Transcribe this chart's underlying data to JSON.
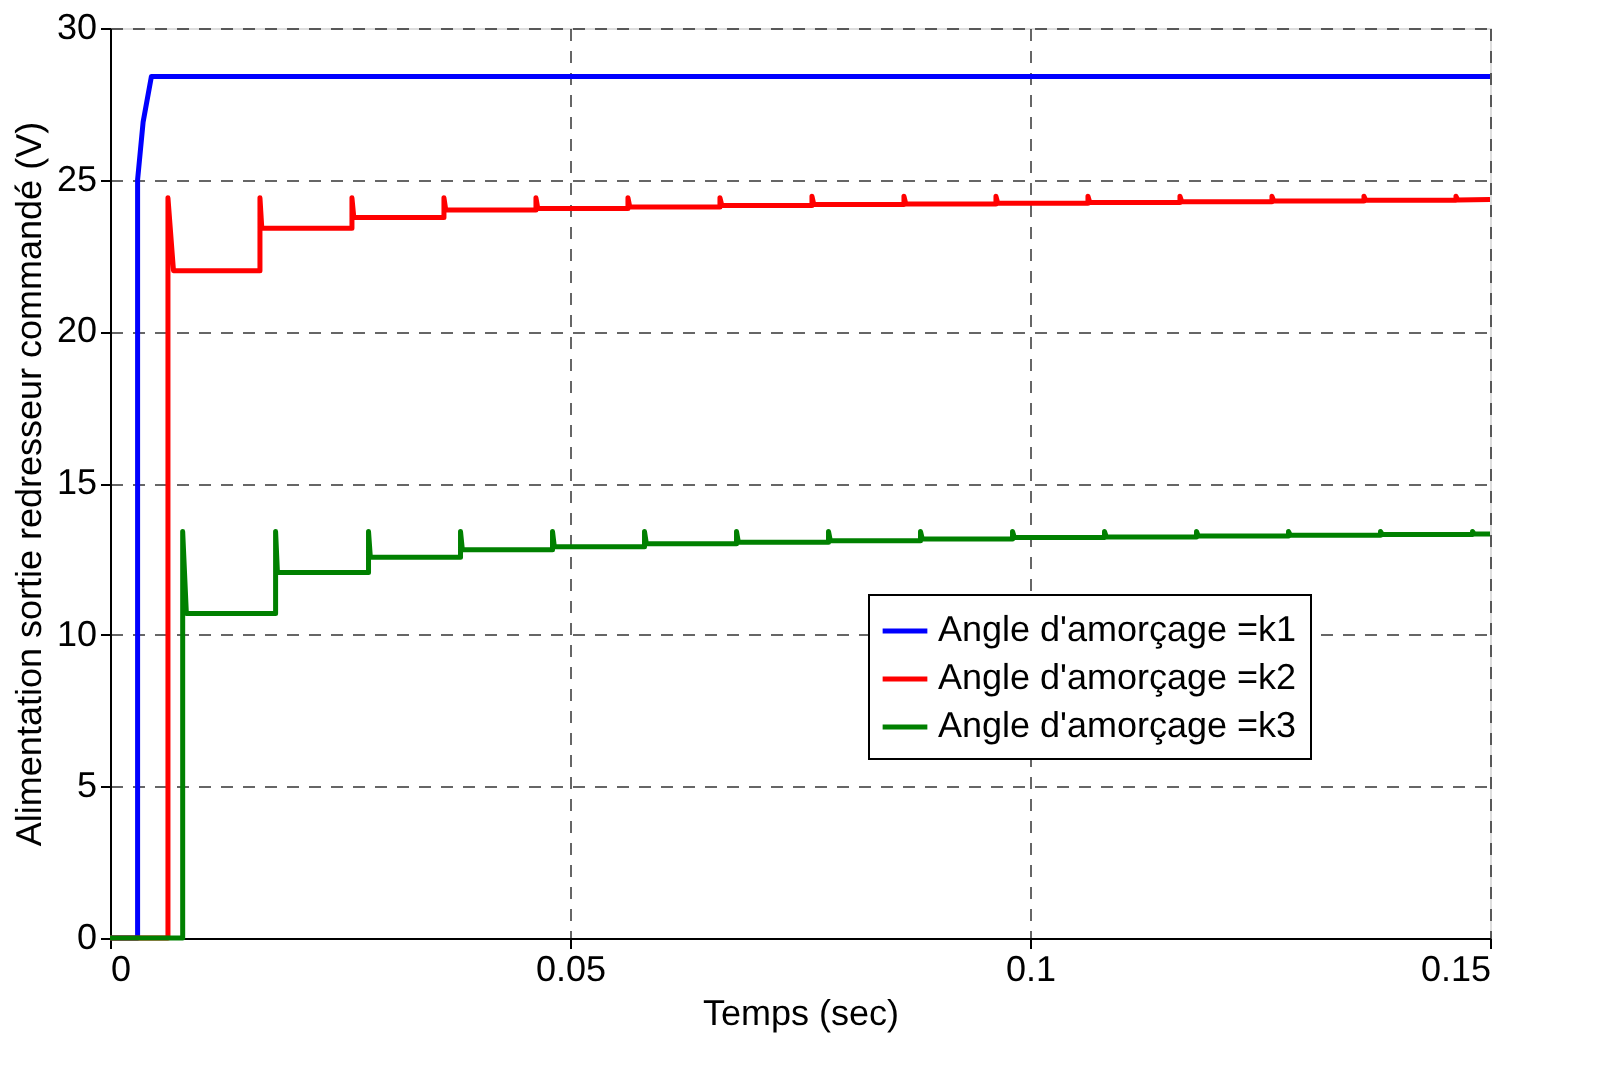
{
  "chart_data": {
    "type": "line",
    "xlabel": "Temps (sec)",
    "ylabel": "Alimentation sortie redresseur commandé (V)",
    "xlim": [
      0,
      0.15
    ],
    "xticks": [
      0,
      0.05,
      0.1,
      0.15
    ],
    "ylim": [
      0,
      30
    ],
    "yticks": [
      0,
      5,
      10,
      15,
      20,
      25,
      30
    ],
    "grid": true,
    "legend": "bottom right",
    "line_style": "solid",
    "marker": "none",
    "series": [
      {
        "name": "Angle d'amorçage =k1",
        "color": "#0000ff",
        "x": [
          0,
          0.003,
          0.003,
          0.0036,
          0.0045,
          0.15
        ],
        "values": [
          0,
          0,
          25,
          26.9,
          28.4,
          28.4
        ]
      },
      {
        "name": "Angle d'amorçage =k2",
        "color": "#ff0000",
        "x": [
          0,
          0.0063,
          0.0063,
          0.0069,
          0.0163,
          0.0163,
          0.0165,
          0.0263,
          0.0263,
          0.0265,
          0.0363,
          0.0363,
          0.0365,
          0.0463,
          0.0463,
          0.0465,
          0.0563,
          0.0563,
          0.0565,
          0.0663,
          0.0663,
          0.0665,
          0.0763,
          0.0763,
          0.0765,
          0.0863,
          0.0863,
          0.0865,
          0.0963,
          0.0963,
          0.0965,
          0.1063,
          0.1063,
          0.1065,
          0.1163,
          0.1163,
          0.1165,
          0.1263,
          0.1263,
          0.1265,
          0.1363,
          0.1363,
          0.1365,
          0.1463,
          0.1463,
          0.1465,
          0.15
        ],
        "values": [
          0,
          0,
          24.4,
          22.0,
          22.0,
          24.4,
          23.4,
          23.4,
          24.4,
          23.75,
          23.75,
          24.4,
          24.0,
          24.0,
          24.4,
          24.05,
          24.05,
          24.4,
          24.1,
          24.1,
          24.4,
          24.15,
          24.15,
          24.45,
          24.18,
          24.18,
          24.45,
          24.2,
          24.2,
          24.45,
          24.22,
          24.22,
          24.45,
          24.25,
          24.25,
          24.45,
          24.27,
          24.27,
          24.45,
          24.3,
          24.3,
          24.45,
          24.32,
          24.32,
          24.45,
          24.33,
          24.35
        ]
      },
      {
        "name": "Angle d'amorçage =k3",
        "color": "#008000",
        "x": [
          0,
          0.0079,
          0.0079,
          0.0083,
          0.018,
          0.018,
          0.0182,
          0.0281,
          0.0281,
          0.0283,
          0.0381,
          0.0381,
          0.0383,
          0.0481,
          0.0481,
          0.0483,
          0.0581,
          0.0581,
          0.0583,
          0.0681,
          0.0681,
          0.0683,
          0.0781,
          0.0781,
          0.0783,
          0.0881,
          0.0881,
          0.0883,
          0.0981,
          0.0981,
          0.0983,
          0.1081,
          0.1081,
          0.1083,
          0.1181,
          0.1181,
          0.1183,
          0.1281,
          0.1281,
          0.1283,
          0.1381,
          0.1381,
          0.1383,
          0.1481,
          0.1481,
          0.1483,
          0.15
        ],
        "values": [
          0,
          0,
          13.4,
          10.7,
          10.7,
          13.4,
          12.05,
          12.05,
          13.4,
          12.55,
          12.55,
          13.4,
          12.8,
          12.8,
          13.4,
          12.9,
          12.9,
          13.4,
          13.0,
          13.0,
          13.4,
          13.05,
          13.05,
          13.4,
          13.1,
          13.1,
          13.4,
          13.15,
          13.15,
          13.4,
          13.2,
          13.2,
          13.4,
          13.22,
          13.22,
          13.4,
          13.25,
          13.25,
          13.4,
          13.28,
          13.28,
          13.4,
          13.3,
          13.3,
          13.4,
          13.32,
          13.32
        ]
      }
    ]
  }
}
